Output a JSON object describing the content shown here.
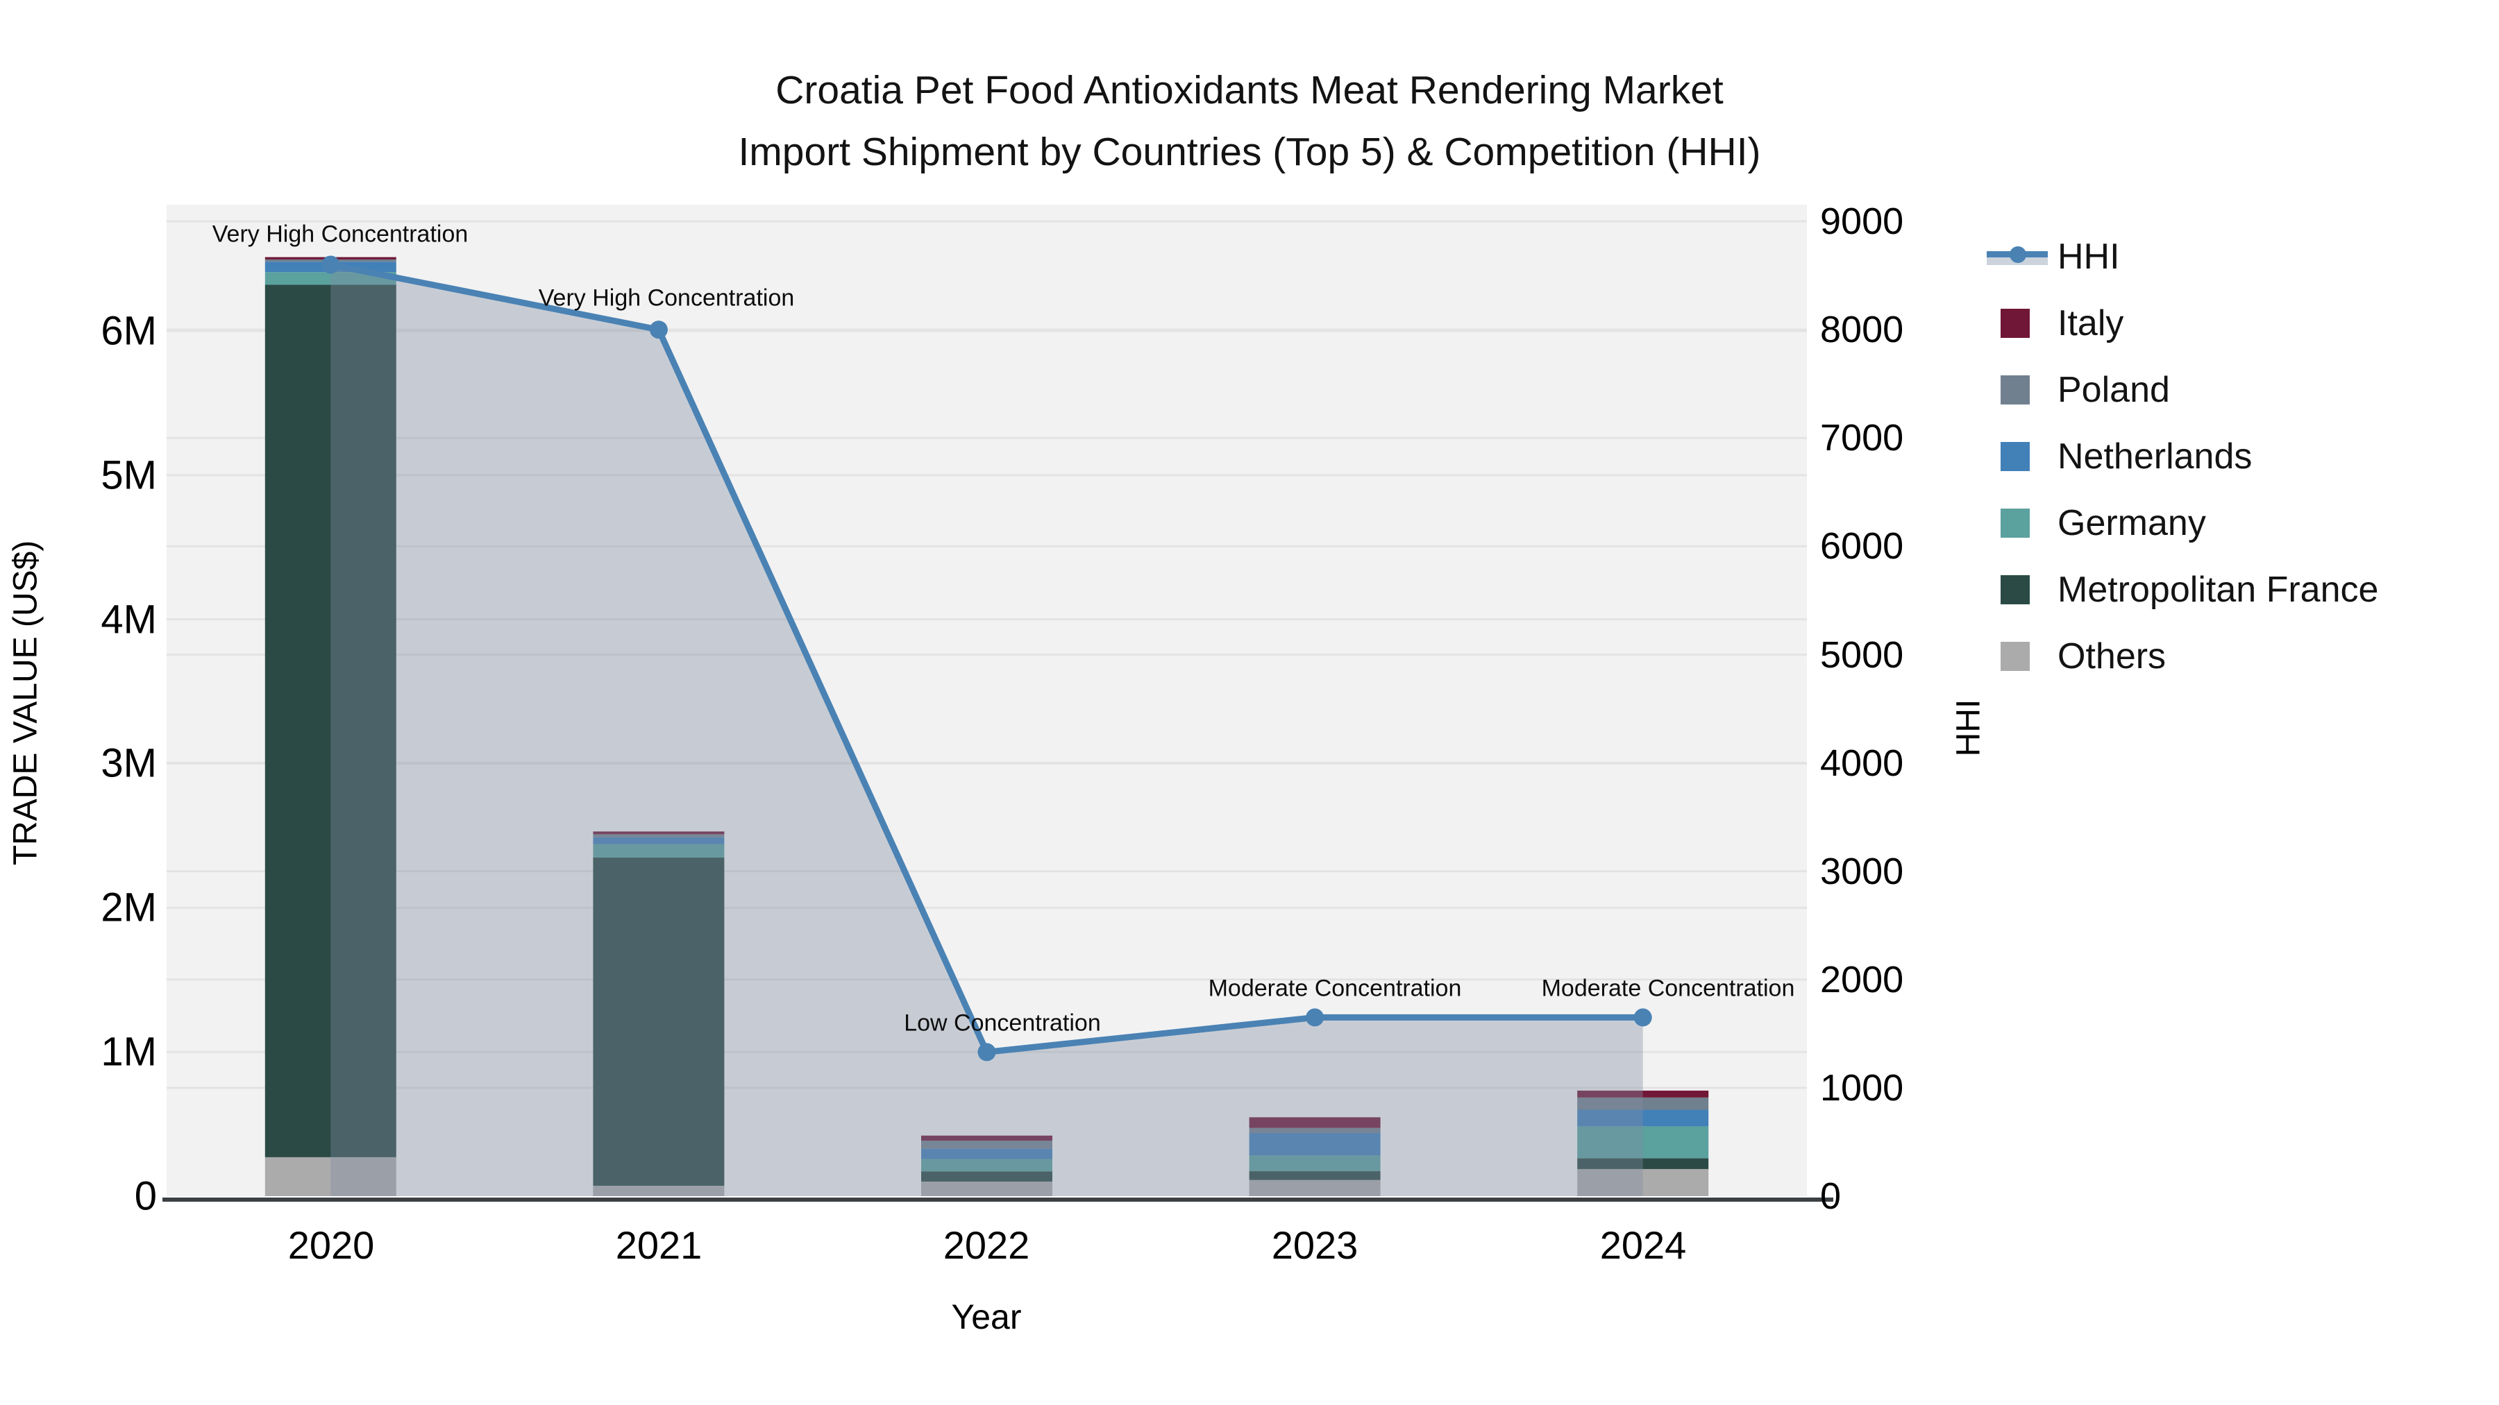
{
  "title": {
    "line1": "Croatia Pet Food Antioxidants Meat Rendering Market",
    "line2": "Import Shipment by Countries (Top 5) & Competition (HHI)"
  },
  "axes": {
    "x": {
      "label": "Year",
      "ticks": [
        "2020",
        "2021",
        "2022",
        "2023",
        "2024"
      ]
    },
    "y_left": {
      "label": "TRADE VALUE (US$)",
      "ticks": [
        "0",
        "1M",
        "2M",
        "3M",
        "4M",
        "5M",
        "6M"
      ]
    },
    "y_right": {
      "label": "HHI",
      "ticks": [
        "0",
        "1000",
        "2000",
        "3000",
        "4000",
        "5000",
        "6000",
        "7000",
        "8000",
        "9000"
      ]
    }
  },
  "annotations": [
    {
      "year": "2020",
      "text": "Very High Concentration"
    },
    {
      "year": "2021",
      "text": "Very High Concentration"
    },
    {
      "year": "2022",
      "text": "Low Concentration"
    },
    {
      "year": "2023",
      "text": "Moderate Concentration"
    },
    {
      "year": "2024",
      "text": "Moderate Concentration"
    }
  ],
  "legend": {
    "items": [
      {
        "label": "HHI",
        "type": "line",
        "color": "#4a82b4"
      },
      {
        "label": "Italy",
        "type": "bar",
        "color": "#701737"
      },
      {
        "label": "Poland",
        "type": "bar",
        "color": "#71808f"
      },
      {
        "label": "Netherlands",
        "type": "bar",
        "color": "#4280b8"
      },
      {
        "label": "Germany",
        "type": "bar",
        "color": "#5ba19e"
      },
      {
        "label": "Metropolitan France",
        "type": "bar",
        "color": "#2b4a45"
      },
      {
        "label": "Others",
        "type": "bar",
        "color": "#ababab"
      }
    ]
  },
  "colors": {
    "plot_background": "#f2f2f2",
    "gridline": "#e3e3e3",
    "axis_line": "#3c4043",
    "hhi_line": "#4a82b4",
    "hhi_area_fill": "rgba(128,142,164,0.38)"
  },
  "chart_data": {
    "type": "combo-stacked-bar-line",
    "title": "Croatia Pet Food Antioxidants Meat Rendering Market — Import Shipment by Countries (Top 5) & Competition (HHI)",
    "xlabel": "Year",
    "ylabel_left": "TRADE VALUE (US$)",
    "ylabel_right": "HHI",
    "x_years": [
      "2020",
      "2021",
      "2022",
      "2023",
      "2024"
    ],
    "ylim_left": [
      0,
      6860000
    ],
    "ylim_right": [
      0,
      9160
    ],
    "yticks_left": [
      0,
      1000000,
      2000000,
      3000000,
      4000000,
      5000000,
      6000000
    ],
    "yticks_right": [
      0,
      1000,
      2000,
      3000,
      4000,
      5000,
      6000,
      7000,
      8000,
      9000
    ],
    "grid": true,
    "legend_position": "top-right-outside",
    "bar_unit": "US$",
    "bar_stack_order_bottom_to_top": [
      "Others",
      "Metropolitan France",
      "Germany",
      "Netherlands",
      "Poland",
      "Italy"
    ],
    "bar_series": [
      {
        "name": "Others",
        "color": "#ababab",
        "values": [
          270000,
          72000,
          101000,
          112000,
          188000
        ]
      },
      {
        "name": "Metropolitan France",
        "color": "#2b4a45",
        "values": [
          6050000,
          2276000,
          71000,
          61000,
          75000
        ]
      },
      {
        "name": "Germany",
        "color": "#5ba19e",
        "values": [
          88000,
          93000,
          85000,
          109000,
          221000
        ]
      },
      {
        "name": "Netherlands",
        "color": "#4280b8",
        "values": [
          72000,
          48000,
          72000,
          156000,
          115000
        ]
      },
      {
        "name": "Poland",
        "color": "#71808f",
        "values": [
          16000,
          21000,
          56000,
          35000,
          85000
        ]
      },
      {
        "name": "Italy",
        "color": "#701737",
        "values": [
          16000,
          19000,
          35000,
          74000,
          48000
        ]
      }
    ],
    "bar_totals": [
      6512000,
      2529000,
      420000,
      547000,
      732000
    ],
    "line_series": {
      "name": "HHI",
      "color": "#4a82b4",
      "area_fill": "rgba(128,142,164,0.38)",
      "values": [
        8600,
        8000,
        1330,
        1650,
        1650
      ]
    }
  }
}
